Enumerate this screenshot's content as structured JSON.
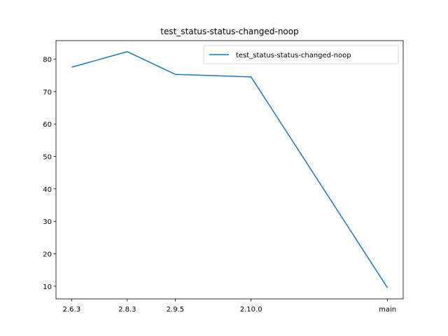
{
  "chart_data": {
    "type": "line",
    "title": "test_status-status-changed-noop",
    "xlabel": "",
    "ylabel": "",
    "x": [
      "2.6.3",
      "2.8.3",
      "2.9.5",
      "2.10.0",
      "main"
    ],
    "x_positions": [
      0,
      1.1,
      2.05,
      3.55,
      6.25
    ],
    "series": [
      {
        "name": "test_status-status-changed-noop",
        "color": "#1f77b4",
        "values": [
          77.5,
          82.3,
          75.3,
          74.5,
          9.5
        ]
      }
    ],
    "yticks": [
      10,
      20,
      30,
      40,
      50,
      60,
      70,
      80
    ],
    "ylim": [
      6.1,
      85.7
    ],
    "xlim": [
      -0.31,
      6.56
    ],
    "grid": false,
    "legend": "upper right"
  }
}
